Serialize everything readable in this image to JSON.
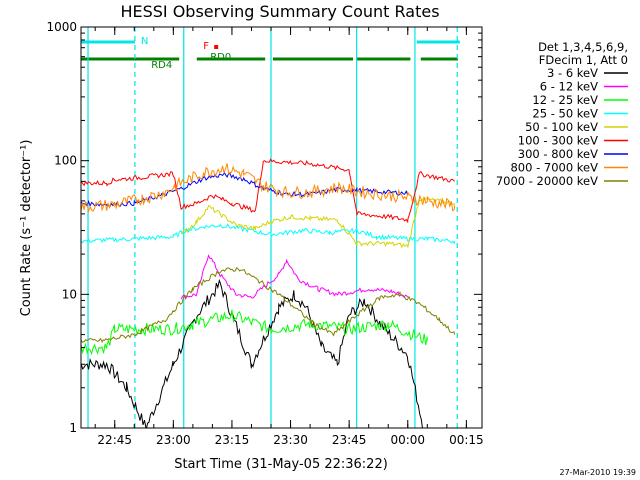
{
  "chart_data": {
    "type": "line",
    "title": "HESSI Observing Summary Count Rates",
    "xlabel": "Start Time (31-May-05 22:36:22)",
    "ylabel": "Count Rate (s⁻¹ detector⁻¹)",
    "y_scale": "log",
    "ylim": [
      1,
      1000
    ],
    "y_ticks": [
      "1",
      "10",
      "100",
      "1000"
    ],
    "xlim": [
      "22:36:22",
      "00:19:00"
    ],
    "x_ticks": [
      {
        "t": "22:45",
        "label": "22:45"
      },
      {
        "t": "23:00",
        "label": "23:00"
      },
      {
        "t": "23:15",
        "label": "23:15"
      },
      {
        "t": "23:30",
        "label": "23:30"
      },
      {
        "t": "23:45",
        "label": "23:45"
      },
      {
        "t": "00:00",
        "label": "00:00"
      },
      {
        "t": "00:15",
        "label": "00:15"
      }
    ],
    "legend_header": [
      "Det 1,3,4,5,6,9,",
      "FDecim 1, Att 0"
    ],
    "legend_position": "right",
    "series": [
      {
        "name": "3 - 6 keV",
        "color": "#000000",
        "data": [
          [
            "22:36",
            3.0
          ],
          [
            "22:43",
            3.0
          ],
          [
            "22:48",
            2.0
          ],
          [
            "22:53",
            1.0
          ],
          [
            "23:00",
            3.0
          ],
          [
            "23:06",
            7.0
          ],
          [
            "23:12",
            12.0
          ],
          [
            "23:15",
            7.0
          ],
          [
            "23:20",
            3.0
          ],
          [
            "23:27",
            8.0
          ],
          [
            "23:31",
            10.0
          ],
          [
            "23:34",
            8.0
          ],
          [
            "23:38",
            4.0
          ],
          [
            "23:42",
            3.0
          ],
          [
            "23:45",
            7.0
          ],
          [
            "23:49",
            9.0
          ],
          [
            "23:53",
            6.0
          ],
          [
            "00:00",
            3.5
          ],
          [
            "00:04",
            1.0
          ]
        ]
      },
      {
        "name": "6 - 12 keV",
        "color": "#ff00ff",
        "data": [
          [
            "23:02",
            9.5
          ],
          [
            "23:06",
            10.0
          ],
          [
            "23:09",
            20.0
          ],
          [
            "23:12",
            14.0
          ],
          [
            "23:16",
            10.0
          ],
          [
            "23:20",
            9.5
          ],
          [
            "23:27",
            14.0
          ],
          [
            "23:29",
            18.0
          ],
          [
            "23:32",
            13.0
          ],
          [
            "23:37",
            11.0
          ],
          [
            "23:42",
            10.0
          ],
          [
            "23:50",
            11.0
          ],
          [
            "23:56",
            10.5
          ],
          [
            "00:00",
            9.5
          ]
        ]
      },
      {
        "name": "12 - 25 keV",
        "color": "#00ff00",
        "data": [
          [
            "22:36",
            4.0
          ],
          [
            "22:43",
            4.0
          ],
          [
            "22:45",
            5.5
          ],
          [
            "22:52",
            5.5
          ],
          [
            "23:00",
            5.5
          ],
          [
            "23:05",
            6.0
          ],
          [
            "23:15",
            7.0
          ],
          [
            "23:25",
            5.5
          ],
          [
            "23:35",
            6.0
          ],
          [
            "23:45",
            5.5
          ],
          [
            "23:55",
            6.0
          ],
          [
            "00:05",
            4.5
          ]
        ]
      },
      {
        "name": "25 - 50 keV",
        "color": "#00ffff",
        "data": [
          [
            "22:36",
            25.0
          ],
          [
            "22:50",
            26.0
          ],
          [
            "23:00",
            27.0
          ],
          [
            "23:03",
            30.0
          ],
          [
            "23:08",
            32.0
          ],
          [
            "23:12",
            33.0
          ],
          [
            "23:20",
            30.0
          ],
          [
            "23:25",
            28.0
          ],
          [
            "23:33",
            30.0
          ],
          [
            "23:40",
            29.0
          ],
          [
            "23:47",
            30.0
          ],
          [
            "23:52",
            27.0
          ],
          [
            "00:00",
            26.0
          ],
          [
            "00:05",
            26.0
          ],
          [
            "00:12",
            25.0
          ]
        ]
      },
      {
        "name": "50 - 100 keV",
        "color": "#d4d400",
        "data": [
          [
            "23:02",
            28.0
          ],
          [
            "23:06",
            35.0
          ],
          [
            "23:09",
            45.0
          ],
          [
            "23:12",
            40.0
          ],
          [
            "23:16",
            33.0
          ],
          [
            "23:21",
            31.0
          ],
          [
            "23:25",
            35.0
          ],
          [
            "23:30",
            38.0
          ],
          [
            "23:35",
            37.0
          ],
          [
            "23:42",
            36.0
          ],
          [
            "23:47",
            24.0
          ],
          [
            "23:55",
            24.0
          ],
          [
            "00:00",
            23.0
          ],
          [
            "00:03",
            52.0
          ],
          [
            "00:12",
            48.0
          ]
        ]
      },
      {
        "name": "100 - 300 keV",
        "color": "#ff0000",
        "data": [
          [
            "22:36",
            68.0
          ],
          [
            "22:43",
            68.0
          ],
          [
            "22:45",
            72.0
          ],
          [
            "22:52",
            75.0
          ],
          [
            "23:00",
            80.0
          ],
          [
            "23:02",
            45.0
          ],
          [
            "23:06",
            48.0
          ],
          [
            "23:10",
            55.0
          ],
          [
            "23:15",
            48.0
          ],
          [
            "23:21",
            42.0
          ],
          [
            "23:23",
            100.0
          ],
          [
            "23:35",
            95.0
          ],
          [
            "23:45",
            85.0
          ],
          [
            "23:47",
            40.0
          ],
          [
            "23:55",
            38.0
          ],
          [
            "00:00",
            36.0
          ],
          [
            "00:03",
            80.0
          ],
          [
            "00:12",
            70.0
          ]
        ]
      },
      {
        "name": "300 - 800 keV",
        "color": "#0000ff",
        "data": [
          [
            "22:36",
            48.0
          ],
          [
            "22:43",
            47.0
          ],
          [
            "22:50",
            48.0
          ],
          [
            "22:57",
            55.0
          ],
          [
            "23:02",
            62.0
          ],
          [
            "23:08",
            74.0
          ],
          [
            "23:13",
            79.0
          ],
          [
            "23:18",
            73.0
          ],
          [
            "23:23",
            62.0
          ],
          [
            "23:29",
            56.0
          ],
          [
            "23:35",
            56.0
          ],
          [
            "23:42",
            61.0
          ],
          [
            "23:47",
            60.0
          ],
          [
            "23:55",
            58.0
          ],
          [
            "00:00",
            57.0
          ]
        ]
      },
      {
        "name": "800 - 7000 keV",
        "color": "#ff8800",
        "data": [
          [
            "22:36",
            45.0
          ],
          [
            "22:45",
            47.0
          ],
          [
            "22:52",
            52.0
          ],
          [
            "22:58",
            58.0
          ],
          [
            "23:02",
            68.0
          ],
          [
            "23:08",
            82.0
          ],
          [
            "23:13",
            88.0
          ],
          [
            "23:18",
            80.0
          ],
          [
            "23:23",
            65.0
          ],
          [
            "23:29",
            58.0
          ],
          [
            "23:35",
            58.0
          ],
          [
            "23:42",
            63.0
          ],
          [
            "23:47",
            59.0
          ],
          [
            "23:55",
            55.0
          ],
          [
            "00:00",
            53.0
          ],
          [
            "00:05",
            50.0
          ],
          [
            "00:12",
            46.0
          ]
        ]
      },
      {
        "name": "7000 - 20000 keV",
        "color": "#808000",
        "data": [
          [
            "22:36",
            4.5
          ],
          [
            "22:42",
            4.5
          ],
          [
            "22:50",
            5.0
          ],
          [
            "22:58",
            6.5
          ],
          [
            "23:05",
            11.0
          ],
          [
            "23:12",
            15.0
          ],
          [
            "23:17",
            15.5
          ],
          [
            "23:22",
            12.5
          ],
          [
            "23:27",
            10.0
          ],
          [
            "23:31",
            8.0
          ],
          [
            "23:36",
            6.0
          ],
          [
            "23:41",
            5.0
          ],
          [
            "23:47",
            7.0
          ],
          [
            "23:53",
            9.5
          ],
          [
            "23:58",
            10.0
          ],
          [
            "00:03",
            8.5
          ],
          [
            "00:08",
            6.5
          ],
          [
            "00:12",
            5.0
          ]
        ]
      }
    ],
    "vertical_lines": {
      "color": "#00e5e5",
      "solid": [
        "22:38:10",
        "23:02:40",
        "23:25:00",
        "23:46:55",
        "00:01:50"
      ],
      "dashed": [
        "22:50:10",
        "00:12:40"
      ]
    },
    "flag_bars": [
      {
        "label": "N",
        "color": "#00e5e5",
        "segments": [
          [
            "22:36:22",
            "22:50:10"
          ],
          [
            "00:02:20",
            "00:13:20"
          ]
        ],
        "level": 1
      },
      {
        "label": "RD4",
        "color": "#008000",
        "segments": [
          [
            "22:36:22",
            "23:01:30"
          ],
          [
            "23:06:00",
            "23:23:30"
          ],
          [
            "23:25:30",
            "23:46:00"
          ],
          [
            "23:46:55",
            "00:00:40"
          ],
          [
            "00:03:20",
            "00:12:50"
          ]
        ],
        "level": 2
      },
      {
        "label": "F",
        "color": "#ff0000",
        "point": "23:08:40",
        "level": 1.6
      },
      {
        "label": "RD0",
        "color": "#008000",
        "point": "23:08:40",
        "level": 1.75
      }
    ],
    "timestamp": "27-Mar-2010 19:39"
  }
}
